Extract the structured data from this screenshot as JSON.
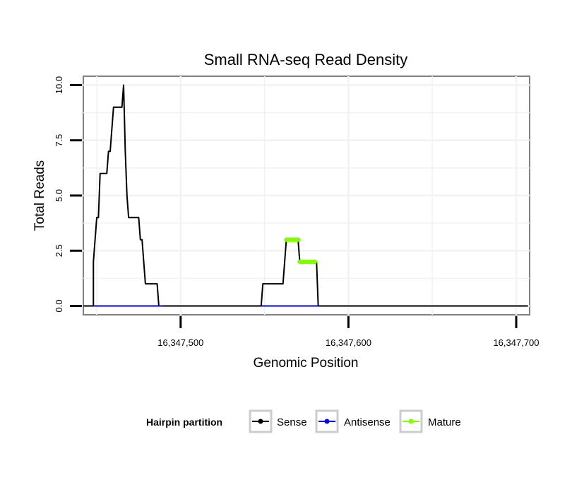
{
  "chart_data": {
    "type": "line",
    "title": "Small RNA-seq Read Density",
    "xlabel": "Genomic Position",
    "ylabel": "Total Reads",
    "xlim": [
      16347442,
      16347708
    ],
    "ylim": [
      -0.4,
      10.4
    ],
    "x_ticks": [
      16347500,
      16347600,
      16347700
    ],
    "x_tick_labels": [
      "16,347,500",
      "16,347,600",
      "16,347,700"
    ],
    "y_ticks": [
      0,
      2.5,
      5,
      7.5,
      10
    ],
    "y_tick_labels": [
      "0.0",
      "2.5",
      "5.0",
      "7.5",
      "10.0"
    ],
    "grid": true,
    "legend": {
      "title": "Hairpin partition",
      "position": "bottom",
      "entries": [
        "Sense",
        "Antisense",
        "Mature"
      ]
    },
    "series": [
      {
        "name": "Sense",
        "color": "#000000",
        "x": [
          16347442,
          16347448,
          16347448,
          16347449,
          16347450,
          16347451,
          16347452,
          16347453,
          16347454,
          16347455,
          16347456,
          16347457,
          16347458,
          16347459,
          16347460,
          16347461,
          16347462,
          16347463,
          16347464,
          16347465,
          16347466,
          16347467,
          16347468,
          16347469,
          16347470,
          16347471,
          16347472,
          16347473,
          16347474,
          16347475,
          16347476,
          16347477,
          16347478,
          16347479,
          16347480,
          16347481,
          16347482,
          16347483,
          16347484,
          16347485,
          16347486,
          16347487,
          16347488,
          16347489,
          16347548,
          16347549,
          16347550,
          16347561,
          16347562,
          16347563,
          16347564,
          16347565,
          16347566,
          16347567,
          16347568,
          16347569,
          16347570,
          16347571,
          16347572,
          16347573,
          16347574,
          16347575,
          16347576,
          16347577,
          16347578,
          16347579,
          16347580,
          16347581,
          16347582,
          16347707
        ],
        "y": [
          0,
          0,
          2,
          3,
          4,
          4,
          6,
          6,
          6,
          6,
          6,
          7,
          7,
          8,
          9,
          9,
          9,
          9,
          9,
          9,
          10,
          7,
          5,
          4,
          4,
          4,
          4,
          4,
          4,
          4,
          3,
          3,
          2,
          1,
          1,
          1,
          1,
          1,
          1,
          1,
          1,
          0,
          0,
          0,
          0,
          1,
          1,
          1,
          2,
          3,
          3,
          3,
          3,
          3,
          3,
          3,
          3,
          2,
          2,
          2,
          2,
          2,
          2,
          2,
          2,
          2,
          2,
          2,
          0,
          0
        ]
      },
      {
        "name": "Antisense",
        "color": "#0000ff",
        "x": [
          16347448,
          16347489,
          16347548,
          16347582
        ],
        "y": [
          0,
          0,
          0,
          0
        ]
      },
      {
        "name": "Mature",
        "color": "#7fff00",
        "x": [
          16347563,
          16347564,
          16347565,
          16347566,
          16347567,
          16347568,
          16347569,
          16347570,
          16347571,
          16347572,
          16347573,
          16347574,
          16347575,
          16347576,
          16347577,
          16347578,
          16347579,
          16347580
        ],
        "y": [
          3,
          3,
          3,
          3,
          3,
          3,
          3,
          3,
          2,
          2,
          2,
          2,
          2,
          2,
          2,
          2,
          2,
          2
        ]
      }
    ]
  }
}
